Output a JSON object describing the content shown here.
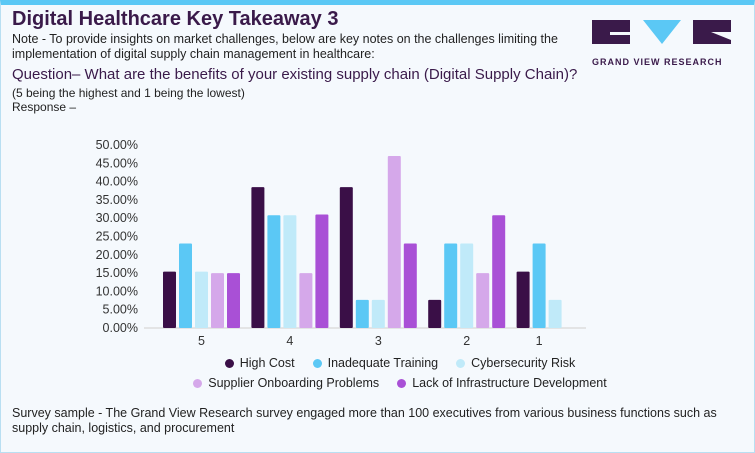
{
  "header": {
    "title": "Digital Healthcare Key Takeaway 3",
    "note": "Note - To provide insights on market challenges, below are key notes on the challenges limiting the implementation of digital supply chain management in healthcare:",
    "question": "Question– What are the benefits of your existing supply chain (Digital Supply Chain)?",
    "scale_note": "(5 being the highest and 1 being the lowest)",
    "response": "Response –"
  },
  "logo": {
    "text": "GRAND VIEW RESEARCH"
  },
  "footer": "Survey sample - The Grand View Research survey engaged more than 100 executives from various business functions such as supply chain, logistics, and procurement",
  "chart_data": {
    "type": "bar",
    "categories": [
      "5",
      "4",
      "3",
      "2",
      "1"
    ],
    "ylim": [
      0,
      50
    ],
    "yticks": [
      "0.00%",
      "5.00%",
      "10.00%",
      "15.00%",
      "20.00%",
      "25.00%",
      "30.00%",
      "35.00%",
      "40.00%",
      "45.00%",
      "50.00%"
    ],
    "grid": false,
    "legend_placement": "bottom",
    "series": [
      {
        "name": "High Cost",
        "color": "#3a0f47",
        "values": [
          15.4,
          38.5,
          38.5,
          7.7,
          15.4
        ]
      },
      {
        "name": "Inadequate Training",
        "color": "#5bc8f5",
        "values": [
          23.1,
          30.8,
          7.7,
          23.1,
          23.1
        ]
      },
      {
        "name": "Cybersecurity Risk",
        "color": "#c0eaf9",
        "values": [
          15.4,
          30.8,
          7.7,
          23.1,
          7.7
        ]
      },
      {
        "name": "Supplier Onboarding Problems",
        "color": "#d5a8ea",
        "values": [
          15.0,
          15.0,
          47.0,
          15.0,
          null
        ]
      },
      {
        "name": "Lack of Infrastructure Development",
        "color": "#a950d6",
        "values": [
          15.0,
          31.0,
          23.1,
          30.8,
          null
        ]
      }
    ]
  }
}
